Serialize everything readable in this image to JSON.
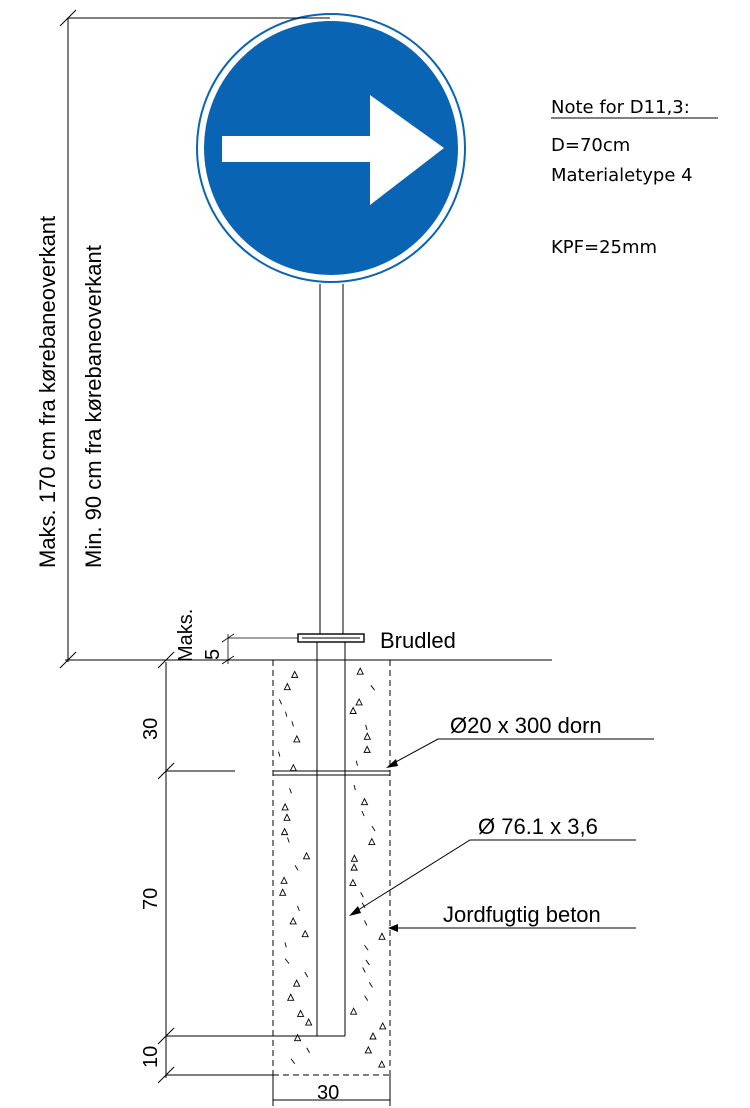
{
  "notes": {
    "heading": "Note for D11,3:",
    "diameter": "D=70cm",
    "material": "Materialetype 4",
    "kpf": "KPF=25mm"
  },
  "height_labels": {
    "max": "Maks. 170 cm fra kørebaneoverkant",
    "min": "Min. 90 cm fra kørebaneoverkant"
  },
  "breakaway": {
    "max_label": "Maks.",
    "max_value": "5",
    "label": "Brudled"
  },
  "callouts": {
    "dowel": "Ø20 x 300 dorn",
    "pipe": "Ø 76.1 x 3,6",
    "concrete": "Jordfugtig beton"
  },
  "dimensions": {
    "upper_depth": "30",
    "middle_depth": "70",
    "bottom_depth": "10",
    "width": "30"
  },
  "colors": {
    "sign_blue": "#0a64b4",
    "arrow": "#ffffff",
    "line": "#000000"
  },
  "icons": {
    "sign": "arrow-right-sign-icon"
  }
}
